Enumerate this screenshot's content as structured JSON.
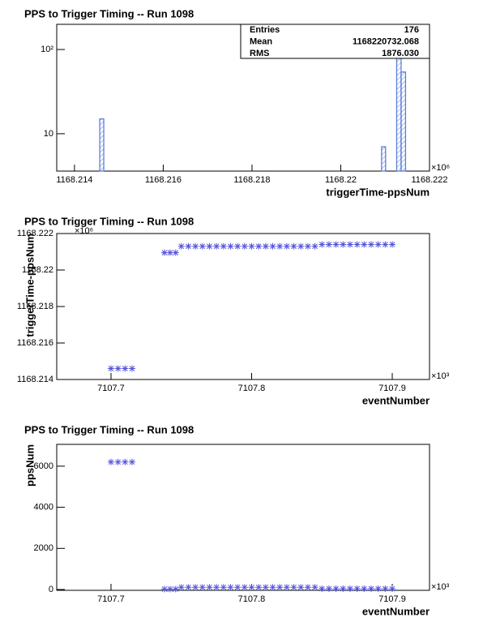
{
  "chart_data": [
    {
      "type": "histogram",
      "title": "PPS to Trigger Timing -- Run 1098",
      "x_label": "triggerTime-ppsNum",
      "x_multiplier": "×10⁶",
      "bins": [
        1168.2136,
        1168.21457,
        1168.21466,
        1168.22092,
        1168.22101,
        1168.22126,
        1168.22136,
        1168.22146,
        1168.222
      ],
      "values": [
        0,
        15,
        0,
        7,
        0,
        100,
        54,
        0
      ],
      "color": "#5b7fd6",
      "log_y": true,
      "xlim": [
        1168.2136,
        1168.222
      ],
      "xticks": [
        1168.214,
        1168.216,
        1168.218,
        1168.22,
        1168.222
      ],
      "ylim": [
        3.6,
        199
      ],
      "yticks": [
        10,
        {
          "value": 100,
          "label": "10²"
        }
      ],
      "stats": {
        "labels": [
          "Entries",
          "Mean",
          "RMS"
        ],
        "values": [
          176,
          1168220732.068,
          {
            "value": 1876.03,
            "label": "1876.030"
          }
        ]
      }
    },
    {
      "type": "scatter",
      "title": "PPS to Trigger Timing -- Run 1098",
      "x_label": "eventNumber",
      "y_label": "triggerTime-ppsNum",
      "x_multiplier": "×10³",
      "y_multiplier": "×10⁶",
      "x": [
        7107.7,
        7107.705,
        7107.71,
        7107.715,
        7107.738,
        7107.742,
        7107.746,
        7107.75,
        7107.755,
        7107.76,
        7107.765,
        7107.77,
        7107.775,
        7107.78,
        7107.785,
        7107.79,
        7107.795,
        7107.8,
        7107.805,
        7107.81,
        7107.815,
        7107.82,
        7107.825,
        7107.83,
        7107.835,
        7107.84,
        7107.845,
        7107.85,
        7107.855,
        7107.86,
        7107.865,
        7107.87,
        7107.875,
        7107.88,
        7107.885,
        7107.89,
        7107.895,
        7107.9
      ],
      "values": [
        1168.2146,
        1168.2146,
        1168.2146,
        1168.2146,
        1168.22095,
        1168.22095,
        1168.22095,
        1168.2213,
        1168.2213,
        1168.2213,
        1168.2213,
        1168.2213,
        1168.2213,
        1168.2213,
        1168.2213,
        1168.2213,
        1168.2213,
        1168.2213,
        1168.2213,
        1168.2213,
        1168.2213,
        1168.2213,
        1168.2213,
        1168.2213,
        1168.2213,
        1168.2213,
        1168.2213,
        1168.2214,
        1168.2214,
        1168.2214,
        1168.2214,
        1168.2214,
        1168.2214,
        1168.2214,
        1168.2214,
        1168.2214,
        1168.2214,
        1168.2214
      ],
      "color": "#5555dd",
      "xlim": [
        7107.6614,
        7107.9265
      ],
      "xticks": [
        7107.7,
        7107.8,
        7107.9
      ],
      "ylim": [
        1168.214,
        1168.222
      ],
      "yticks": [
        1168.214,
        1168.216,
        1168.218,
        1168.22,
        1168.222
      ]
    },
    {
      "type": "scatter",
      "title": "PPS to Trigger Timing -- Run 1098",
      "x_label": "eventNumber",
      "y_label": "ppsNum",
      "x_multiplier": "×10³",
      "x": [
        7107.7,
        7107.705,
        7107.71,
        7107.715,
        7107.738,
        7107.742,
        7107.746,
        7107.75,
        7107.755,
        7107.76,
        7107.765,
        7107.77,
        7107.775,
        7107.78,
        7107.785,
        7107.79,
        7107.795,
        7107.8,
        7107.805,
        7107.81,
        7107.815,
        7107.82,
        7107.825,
        7107.83,
        7107.835,
        7107.84,
        7107.845,
        7107.85,
        7107.855,
        7107.86,
        7107.865,
        7107.87,
        7107.875,
        7107.88,
        7107.885,
        7107.89,
        7107.895,
        7107.9
      ],
      "values": [
        6200,
        6200,
        6200,
        6200,
        20,
        20,
        20,
        110,
        110,
        110,
        110,
        110,
        110,
        110,
        110,
        110,
        110,
        110,
        110,
        110,
        110,
        110,
        110,
        110,
        110,
        110,
        110,
        40,
        40,
        40,
        40,
        40,
        40,
        40,
        40,
        40,
        40,
        40
      ],
      "color": "#5555dd",
      "xlim": [
        7107.6614,
        7107.9265
      ],
      "xticks": [
        7107.7,
        7107.8,
        7107.9
      ],
      "ylim": [
        -40,
        7060
      ],
      "yticks": [
        0,
        2000,
        4000,
        6000
      ]
    }
  ]
}
